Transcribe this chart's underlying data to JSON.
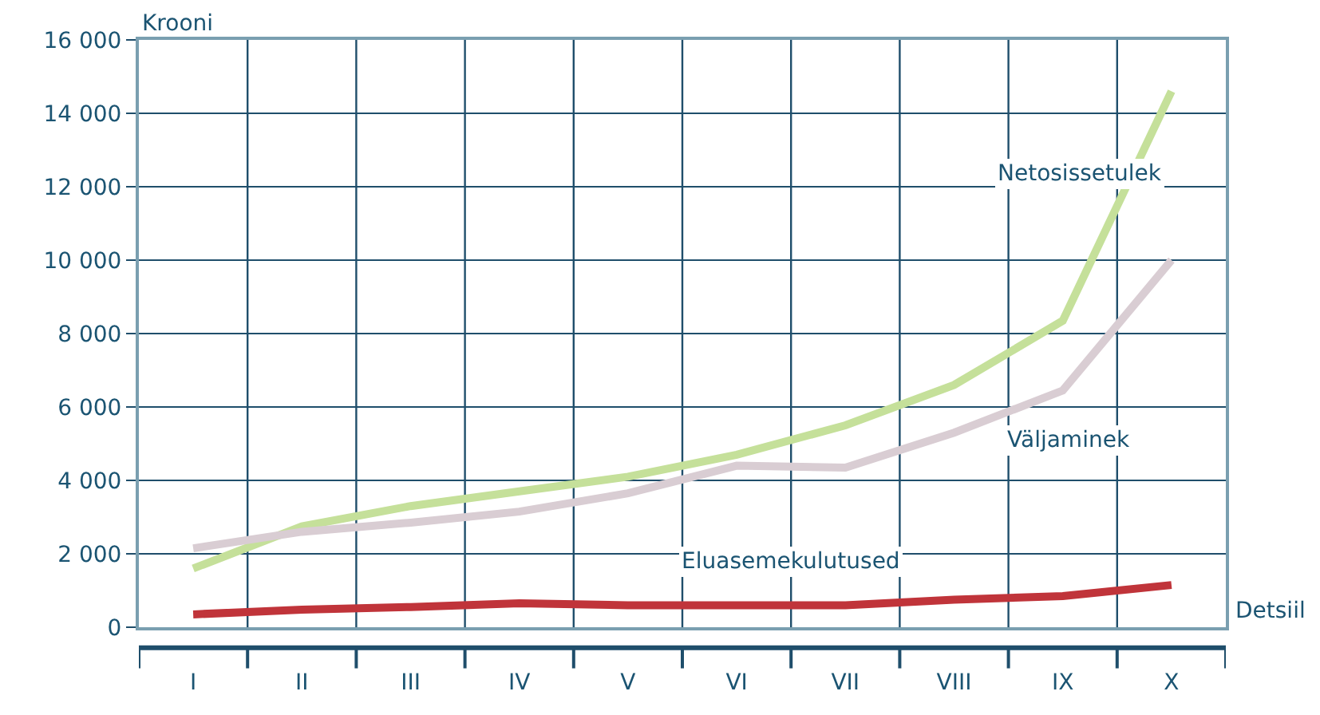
{
  "chart_data": {
    "type": "line",
    "xlabel": "Detsiil",
    "ylabel": "Krooni",
    "categories": [
      "I",
      "II",
      "III",
      "IV",
      "V",
      "VI",
      "VII",
      "VIII",
      "IX",
      "X"
    ],
    "series": [
      {
        "name": "Netosissetulek",
        "color": "#c5e09a",
        "values": [
          1600,
          2750,
          3300,
          3700,
          4100,
          4700,
          5500,
          6600,
          8350,
          14600
        ]
      },
      {
        "name": "Väljaminek",
        "color": "#d9cdd3",
        "values": [
          2150,
          2600,
          2850,
          3150,
          3650,
          4400,
          4350,
          5300,
          6450,
          10000
        ]
      },
      {
        "name": "Eluasemekulutused",
        "color": "#c0343a",
        "values": [
          350,
          480,
          550,
          650,
          600,
          600,
          600,
          750,
          850,
          1150
        ]
      }
    ],
    "ylim": [
      0,
      16000
    ],
    "yticks": [
      0,
      {
        "value": 2000,
        "label": "2 000"
      },
      {
        "value": 4000,
        "label": "4 000"
      },
      {
        "value": 6000,
        "label": "6 000"
      },
      {
        "value": 8000,
        "label": "8 000"
      },
      {
        "value": 10000,
        "label": "10 000"
      },
      {
        "value": 12000,
        "label": "12 000"
      },
      {
        "value": 14000,
        "label": "14 000"
      },
      {
        "value": 16000,
        "label": "16 000"
      }
    ],
    "grid": true,
    "legend": false,
    "marker": "none",
    "line_style": "solid"
  }
}
